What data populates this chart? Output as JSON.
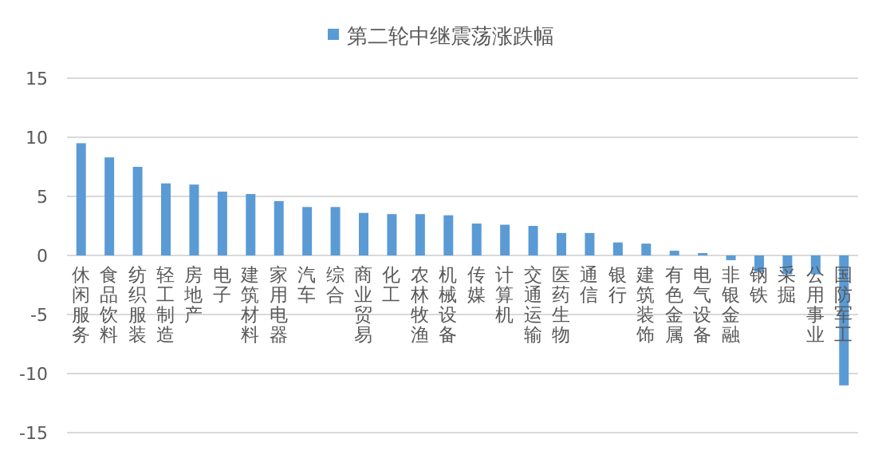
{
  "chart_data": {
    "type": "bar",
    "categories": [
      "休闲服务",
      "食品饮料",
      "纺织服装",
      "轻工制造",
      "房地产",
      "电子",
      "建筑材料",
      "家用电器",
      "汽车",
      "综合",
      "商业贸易",
      "化工",
      "农林牧渔",
      "机械设备",
      "传媒",
      "计算机",
      "交通运输",
      "医药生物",
      "通信",
      "银行",
      "建筑装饰",
      "有色金属",
      "电气设备",
      "非银金融",
      "钢铁",
      "采掘",
      "公用事业",
      "国防军工"
    ],
    "series": [
      {
        "name": "第二轮中继震荡涨跌幅",
        "color": "#5b9bd5",
        "values": [
          9.5,
          8.3,
          7.5,
          6.1,
          6.0,
          5.4,
          5.2,
          4.6,
          4.1,
          4.1,
          3.6,
          3.5,
          3.5,
          3.4,
          2.7,
          2.6,
          2.5,
          1.9,
          1.9,
          1.1,
          1.0,
          0.4,
          0.2,
          -0.4,
          -1.4,
          -1.6,
          -1.6,
          -11.0
        ]
      }
    ],
    "ylim": [
      -15,
      15
    ],
    "yticks": [
      -15,
      -10,
      -5,
      0,
      5,
      10,
      15
    ],
    "grid": "y",
    "legend": "top"
  }
}
